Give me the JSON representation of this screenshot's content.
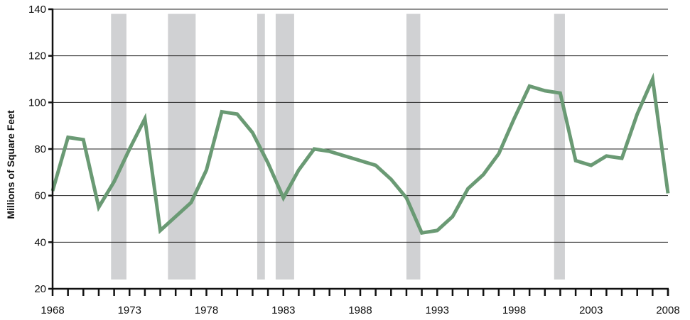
{
  "chart_data": {
    "type": "line",
    "title": "",
    "xlabel": "",
    "ylabel": "Millions of Square Feet",
    "xlim": [
      1968,
      2008
    ],
    "ylim": [
      20,
      140
    ],
    "grid": true,
    "x_ticks": [
      1968,
      1973,
      1978,
      1983,
      1988,
      1993,
      1998,
      2003,
      2008
    ],
    "y_ticks": [
      20,
      40,
      60,
      80,
      100,
      120,
      140
    ],
    "x_tick_labels": [
      "1968",
      "1973",
      "1978",
      "1983",
      "1988",
      "1993",
      "1998",
      "2003",
      "2008"
    ],
    "y_tick_labels": [
      "20",
      "40",
      "60",
      "80",
      "100",
      "120",
      "140"
    ],
    "recession_bands": [
      [
        1971.8,
        1972.8
      ],
      [
        1975.5,
        1977.3
      ],
      [
        1981.3,
        1981.8
      ],
      [
        1982.5,
        1983.7
      ],
      [
        1991.0,
        1991.9
      ],
      [
        2000.6,
        2001.3
      ]
    ],
    "recession_band_range": [
      24,
      138
    ],
    "series": [
      {
        "color": "#6a9a74",
        "x": [
          1968,
          1969,
          1970,
          1971,
          1972,
          1973,
          1974,
          1975,
          1976,
          1977,
          1978,
          1979,
          1980,
          1981,
          1982,
          1983,
          1984,
          1985,
          1986,
          1987,
          1988,
          1989,
          1990,
          1991,
          1992,
          1993,
          1994,
          1995,
          1996,
          1997,
          1998,
          1999,
          2000,
          2001,
          2002,
          2003,
          2004,
          2005,
          2006,
          2007,
          2008
        ],
        "y": [
          62,
          85,
          84,
          55,
          66,
          80,
          93,
          45,
          51,
          57,
          71,
          96,
          95,
          87,
          74,
          59,
          71,
          80,
          79,
          77,
          75,
          73,
          67,
          59,
          44,
          45,
          51,
          63,
          69,
          78,
          93,
          107,
          105,
          104,
          75,
          73,
          77,
          76,
          95,
          110,
          61
        ]
      }
    ]
  },
  "colors": {
    "band": "#d0d1d3",
    "line": "#6a9a74",
    "axis": "#111111",
    "grid": "#222222"
  }
}
